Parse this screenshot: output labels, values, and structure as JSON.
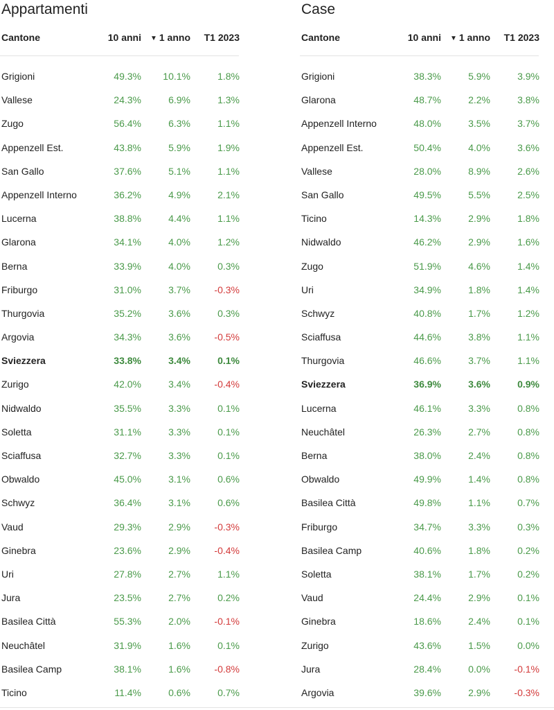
{
  "colors": {
    "positive": "#4a9a4a",
    "negative": "#d33a3a",
    "text": "#222222"
  },
  "sort_icon": "triangle-down-icon",
  "tables": [
    {
      "title": "Appartamenti",
      "columns": {
        "name": "Cantone",
        "ten_years": "10 anni",
        "sort_glyph": "▼",
        "one_year": "1 anno",
        "q1": "T1 2023"
      },
      "rows": [
        {
          "name": "Grigioni",
          "ten": "49.3%",
          "one": "10.1%",
          "q1": "1.8%"
        },
        {
          "name": "Vallese",
          "ten": "24.3%",
          "one": "6.9%",
          "q1": "1.3%"
        },
        {
          "name": "Zugo",
          "ten": "56.4%",
          "one": "6.3%",
          "q1": "1.1%"
        },
        {
          "name": "Appenzell Est.",
          "ten": "43.8%",
          "one": "5.9%",
          "q1": "1.9%"
        },
        {
          "name": "San Gallo",
          "ten": "37.6%",
          "one": "5.1%",
          "q1": "1.1%"
        },
        {
          "name": "Appenzell Interno",
          "ten": "36.2%",
          "one": "4.9%",
          "q1": "2.1%"
        },
        {
          "name": "Lucerna",
          "ten": "38.8%",
          "one": "4.4%",
          "q1": "1.1%"
        },
        {
          "name": "Glarona",
          "ten": "34.1%",
          "one": "4.0%",
          "q1": "1.2%"
        },
        {
          "name": "Berna",
          "ten": "33.9%",
          "one": "4.0%",
          "q1": "0.3%"
        },
        {
          "name": "Friburgo",
          "ten": "31.0%",
          "one": "3.7%",
          "q1": "-0.3%"
        },
        {
          "name": "Thurgovia",
          "ten": "35.2%",
          "one": "3.6%",
          "q1": "0.3%"
        },
        {
          "name": "Argovia",
          "ten": "34.3%",
          "one": "3.6%",
          "q1": "-0.5%"
        },
        {
          "name": "Sviezzera",
          "ten": "33.8%",
          "one": "3.4%",
          "q1": "0.1%",
          "bold": true
        },
        {
          "name": "Zurigo",
          "ten": "42.0%",
          "one": "3.4%",
          "q1": "-0.4%"
        },
        {
          "name": "Nidwaldo",
          "ten": "35.5%",
          "one": "3.3%",
          "q1": "0.1%"
        },
        {
          "name": "Soletta",
          "ten": "31.1%",
          "one": "3.3%",
          "q1": "0.1%"
        },
        {
          "name": "Sciaffusa",
          "ten": "32.7%",
          "one": "3.3%",
          "q1": "0.1%"
        },
        {
          "name": "Obwaldo",
          "ten": "45.0%",
          "one": "3.1%",
          "q1": "0.6%"
        },
        {
          "name": "Schwyz",
          "ten": "36.4%",
          "one": "3.1%",
          "q1": "0.6%"
        },
        {
          "name": "Vaud",
          "ten": "29.3%",
          "one": "2.9%",
          "q1": "-0.3%"
        },
        {
          "name": "Ginebra",
          "ten": "23.6%",
          "one": "2.9%",
          "q1": "-0.4%"
        },
        {
          "name": "Uri",
          "ten": "27.8%",
          "one": "2.7%",
          "q1": "1.1%"
        },
        {
          "name": "Jura",
          "ten": "23.5%",
          "one": "2.7%",
          "q1": "0.2%"
        },
        {
          "name": "Basilea Città",
          "ten": "55.3%",
          "one": "2.0%",
          "q1": "-0.1%"
        },
        {
          "name": "Neuchâtel",
          "ten": "31.9%",
          "one": "1.6%",
          "q1": "0.1%"
        },
        {
          "name": "Basilea Camp",
          "ten": "38.1%",
          "one": "1.6%",
          "q1": "-0.8%"
        },
        {
          "name": "Ticino",
          "ten": "11.4%",
          "one": "0.6%",
          "q1": "0.7%"
        }
      ]
    },
    {
      "title": "Case",
      "columns": {
        "name": "Cantone",
        "ten_years": "10 anni",
        "sort_glyph": "▼",
        "one_year": "1 anno",
        "q1": "T1 2023"
      },
      "rows": [
        {
          "name": "Grigioni",
          "ten": "38.3%",
          "one": "5.9%",
          "q1": "3.9%"
        },
        {
          "name": "Glarona",
          "ten": "48.7%",
          "one": "2.2%",
          "q1": "3.8%"
        },
        {
          "name": "Appenzell Interno",
          "ten": "48.0%",
          "one": "3.5%",
          "q1": "3.7%"
        },
        {
          "name": "Appenzell Est.",
          "ten": "50.4%",
          "one": "4.0%",
          "q1": "3.6%"
        },
        {
          "name": "Vallese",
          "ten": "28.0%",
          "one": "8.9%",
          "q1": "2.6%"
        },
        {
          "name": "San Gallo",
          "ten": "49.5%",
          "one": "5.5%",
          "q1": "2.5%"
        },
        {
          "name": "Ticino",
          "ten": "14.3%",
          "one": "2.9%",
          "q1": "1.8%"
        },
        {
          "name": "Nidwaldo",
          "ten": "46.2%",
          "one": "2.9%",
          "q1": "1.6%"
        },
        {
          "name": "Zugo",
          "ten": "51.9%",
          "one": "4.6%",
          "q1": "1.4%"
        },
        {
          "name": "Uri",
          "ten": "34.9%",
          "one": "1.8%",
          "q1": "1.4%"
        },
        {
          "name": "Schwyz",
          "ten": "40.8%",
          "one": "1.7%",
          "q1": "1.2%"
        },
        {
          "name": "Sciaffusa",
          "ten": "44.6%",
          "one": "3.8%",
          "q1": "1.1%"
        },
        {
          "name": "Thurgovia",
          "ten": "46.6%",
          "one": "3.7%",
          "q1": "1.1%"
        },
        {
          "name": "Sviezzera",
          "ten": "36.9%",
          "one": "3.6%",
          "q1": "0.9%",
          "bold": true
        },
        {
          "name": "Lucerna",
          "ten": "46.1%",
          "one": "3.3%",
          "q1": "0.8%"
        },
        {
          "name": "Neuchâtel",
          "ten": "26.3%",
          "one": "2.7%",
          "q1": "0.8%"
        },
        {
          "name": "Berna",
          "ten": "38.0%",
          "one": "2.4%",
          "q1": "0.8%"
        },
        {
          "name": "Obwaldo",
          "ten": "49.9%",
          "one": "1.4%",
          "q1": "0.8%"
        },
        {
          "name": "Basilea Città",
          "ten": "49.8%",
          "one": "1.1%",
          "q1": "0.7%"
        },
        {
          "name": "Friburgo",
          "ten": "34.7%",
          "one": "3.3%",
          "q1": "0.3%"
        },
        {
          "name": "Basilea Camp",
          "ten": "40.6%",
          "one": "1.8%",
          "q1": "0.2%"
        },
        {
          "name": "Soletta",
          "ten": "38.1%",
          "one": "1.7%",
          "q1": "0.2%"
        },
        {
          "name": "Vaud",
          "ten": "24.4%",
          "one": "2.9%",
          "q1": "0.1%"
        },
        {
          "name": "Ginebra",
          "ten": "18.6%",
          "one": "2.4%",
          "q1": "0.1%"
        },
        {
          "name": "Zurigo",
          "ten": "43.6%",
          "one": "1.5%",
          "q1": "0.0%"
        },
        {
          "name": "Jura",
          "ten": "28.4%",
          "one": "0.0%",
          "q1": "-0.1%"
        },
        {
          "name": "Argovia",
          "ten": "39.6%",
          "one": "2.9%",
          "q1": "-0.3%"
        }
      ]
    }
  ]
}
